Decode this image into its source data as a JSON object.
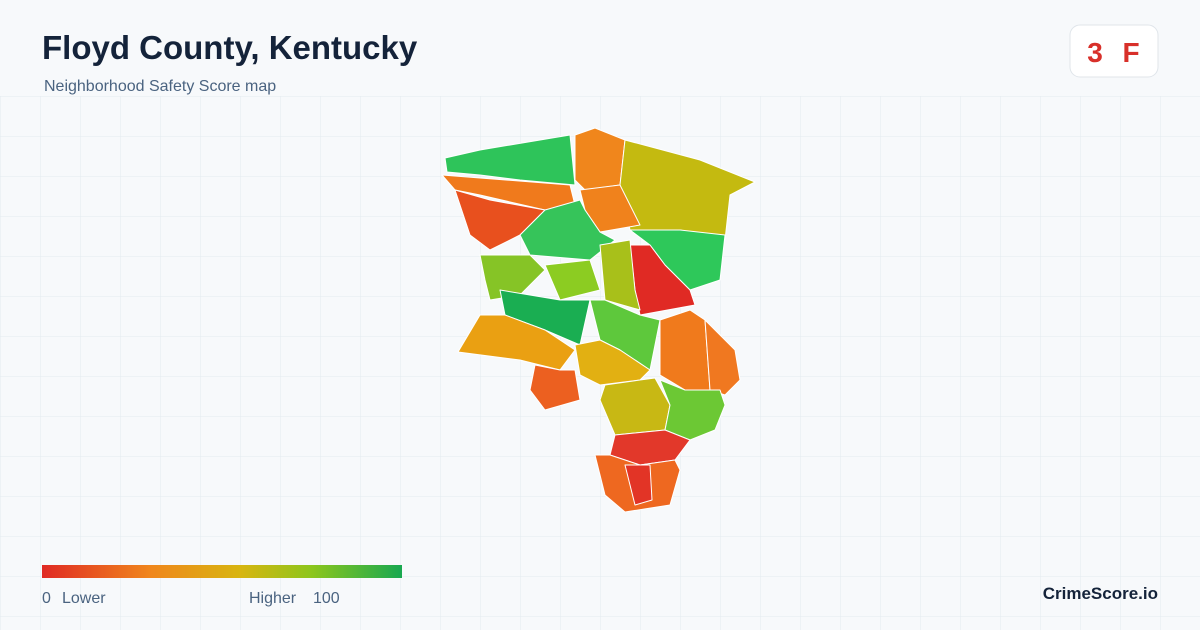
{
  "header": {
    "title": "Floyd County, Kentucky",
    "subtitle": "Neighborhood Safety Score map"
  },
  "score": {
    "value": "3",
    "grade": "F"
  },
  "legend": {
    "min": "0",
    "min_label": "Lower",
    "max_label": "Higher",
    "max": "100"
  },
  "brand": "CrimeScore.io"
}
